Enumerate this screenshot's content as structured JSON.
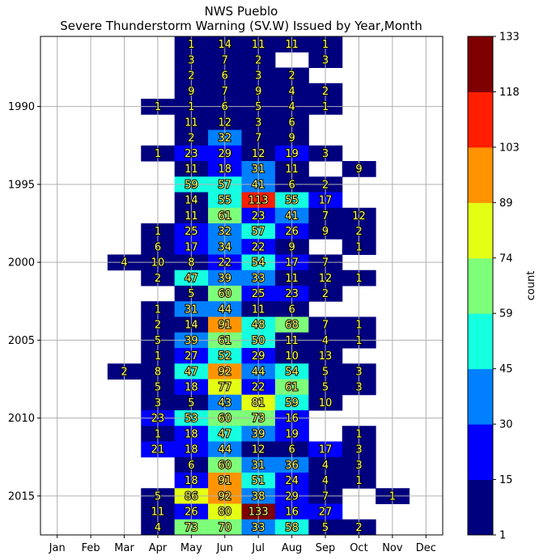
{
  "chart_data": {
    "type": "heatmap",
    "title": "NWS Pueblo",
    "subtitle": "Severe Thunderstorm Warning (SV.W) Issued by Year,Month",
    "xlabel": "",
    "ylabel": "",
    "x_categories": [
      "Jan",
      "Feb",
      "Mar",
      "Apr",
      "May",
      "Jun",
      "Jul",
      "Aug",
      "Sep",
      "Oct",
      "Nov",
      "Dec"
    ],
    "years": [
      1986,
      1987,
      1988,
      1989,
      1990,
      1991,
      1992,
      1993,
      1994,
      1995,
      1996,
      1997,
      1998,
      1999,
      2000,
      2001,
      2002,
      2003,
      2004,
      2005,
      2006,
      2007,
      2008,
      2009,
      2010,
      2011,
      2012,
      2013,
      2014,
      2015,
      2016,
      2017
    ],
    "y_ticks": [
      1990,
      1995,
      2000,
      2005,
      2010,
      2015
    ],
    "values": [
      [
        null,
        null,
        null,
        null,
        1,
        14,
        11,
        11,
        1,
        null,
        null,
        null
      ],
      [
        null,
        null,
        null,
        null,
        3,
        7,
        2,
        null,
        3,
        null,
        null,
        null
      ],
      [
        null,
        null,
        null,
        null,
        2,
        6,
        3,
        2,
        null,
        null,
        null,
        null
      ],
      [
        null,
        null,
        null,
        null,
        9,
        7,
        9,
        4,
        2,
        null,
        null,
        null
      ],
      [
        null,
        null,
        null,
        1,
        1,
        6,
        5,
        4,
        1,
        null,
        null,
        null
      ],
      [
        null,
        null,
        null,
        null,
        11,
        12,
        3,
        6,
        null,
        null,
        null,
        null
      ],
      [
        null,
        null,
        null,
        null,
        2,
        32,
        7,
        9,
        null,
        null,
        null,
        null
      ],
      [
        null,
        null,
        null,
        1,
        23,
        29,
        12,
        19,
        3,
        null,
        null,
        null
      ],
      [
        null,
        null,
        null,
        null,
        11,
        18,
        31,
        11,
        null,
        9,
        null,
        null
      ],
      [
        null,
        null,
        null,
        null,
        59,
        57,
        41,
        6,
        2,
        null,
        null,
        null
      ],
      [
        null,
        null,
        null,
        null,
        14,
        55,
        113,
        55,
        17,
        null,
        null,
        null
      ],
      [
        null,
        null,
        null,
        null,
        11,
        61,
        23,
        41,
        7,
        12,
        null,
        null
      ],
      [
        null,
        null,
        null,
        1,
        25,
        32,
        57,
        26,
        9,
        2,
        null,
        null
      ],
      [
        null,
        null,
        null,
        6,
        17,
        34,
        22,
        9,
        null,
        1,
        null,
        null
      ],
      [
        null,
        null,
        4,
        10,
        8,
        22,
        54,
        17,
        7,
        null,
        null,
        null
      ],
      [
        null,
        null,
        null,
        2,
        47,
        39,
        33,
        11,
        12,
        1,
        null,
        null
      ],
      [
        null,
        null,
        null,
        null,
        5,
        60,
        25,
        23,
        2,
        null,
        null,
        null
      ],
      [
        null,
        null,
        null,
        1,
        31,
        44,
        11,
        6,
        null,
        null,
        null,
        null
      ],
      [
        null,
        null,
        null,
        2,
        14,
        91,
        48,
        68,
        7,
        1,
        null,
        null
      ],
      [
        null,
        null,
        null,
        5,
        39,
        61,
        50,
        11,
        4,
        1,
        null,
        null
      ],
      [
        null,
        null,
        null,
        1,
        27,
        52,
        29,
        10,
        13,
        null,
        null,
        null
      ],
      [
        null,
        null,
        2,
        8,
        47,
        92,
        44,
        54,
        5,
        3,
        null,
        null
      ],
      [
        null,
        null,
        null,
        5,
        18,
        77,
        22,
        61,
        5,
        3,
        null,
        null
      ],
      [
        null,
        null,
        null,
        3,
        5,
        43,
        81,
        59,
        10,
        null,
        null,
        null
      ],
      [
        null,
        null,
        null,
        23,
        53,
        60,
        73,
        16,
        null,
        null,
        null,
        null
      ],
      [
        null,
        null,
        null,
        1,
        18,
        47,
        39,
        19,
        null,
        1,
        null,
        null
      ],
      [
        null,
        null,
        null,
        21,
        18,
        44,
        12,
        6,
        17,
        3,
        null,
        null
      ],
      [
        null,
        null,
        null,
        null,
        6,
        60,
        31,
        36,
        4,
        3,
        null,
        null
      ],
      [
        null,
        null,
        null,
        null,
        18,
        91,
        51,
        24,
        4,
        1,
        null,
        null
      ],
      [
        null,
        null,
        null,
        5,
        86,
        92,
        38,
        29,
        7,
        null,
        1,
        null
      ],
      [
        null,
        null,
        null,
        11,
        26,
        80,
        133,
        16,
        27,
        null,
        null,
        null
      ],
      [
        null,
        null,
        null,
        4,
        73,
        70,
        33,
        58,
        5,
        2,
        null,
        null
      ]
    ],
    "colorbar": {
      "label": "count",
      "ticks": [
        "1",
        "15",
        "30",
        "45",
        "59",
        "74",
        "89",
        "103",
        "118",
        "133"
      ],
      "colors": [
        "#00007f",
        "#0000ff",
        "#0080ff",
        "#15ffe1",
        "#7dff7a",
        "#e4ff13",
        "#ff9400",
        "#ff1e00",
        "#7f0000"
      ]
    },
    "grid": true
  }
}
